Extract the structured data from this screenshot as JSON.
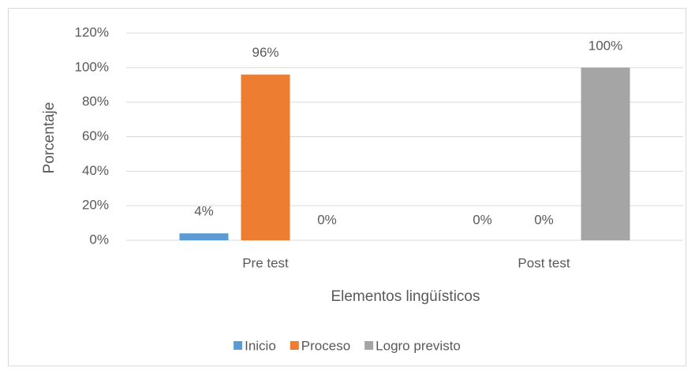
{
  "chart_data": {
    "type": "bar",
    "categories": [
      "Pre test",
      "Post test"
    ],
    "series": [
      {
        "name": "Inicio",
        "color": "#5b9bd5",
        "values": [
          4,
          0
        ],
        "value_labels": [
          "4%",
          "0%"
        ]
      },
      {
        "name": "Proceso",
        "color": "#ed7d31",
        "values": [
          96,
          0
        ],
        "value_labels": [
          "96%",
          "0%"
        ]
      },
      {
        "name": "Logro previsto",
        "color": "#a5a5a5",
        "values": [
          0,
          100
        ],
        "value_labels": [
          "0%",
          "100%"
        ]
      }
    ],
    "ylim": [
      0,
      120
    ],
    "yticks": [
      {
        "value": 0,
        "label": "0%"
      },
      {
        "value": 20,
        "label": "20%"
      },
      {
        "value": 40,
        "label": "40%"
      },
      {
        "value": 60,
        "label": "60%"
      },
      {
        "value": 80,
        "label": "80%"
      },
      {
        "value": 100,
        "label": "100%"
      },
      {
        "value": 120,
        "label": "120%"
      }
    ],
    "ylabel": "Porcentaje",
    "xlabel": "Elementos lingüísticos",
    "grid": true,
    "legend": "bottom"
  }
}
